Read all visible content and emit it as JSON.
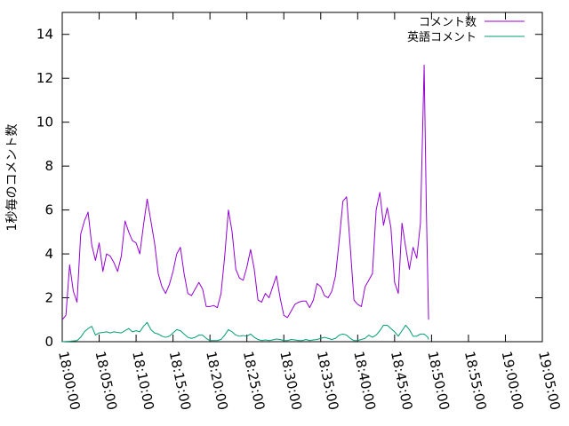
{
  "chart_data": {
    "type": "line",
    "title": "",
    "xlabel": "",
    "ylabel": "1秒毎のコメント数",
    "xlim": [
      "18:00:00",
      "19:05:00"
    ],
    "ylim": [
      0,
      15
    ],
    "xticks": [
      "18:00:00",
      "18:05:00",
      "18:10:00",
      "18:15:00",
      "18:20:00",
      "18:25:00",
      "18:30:00",
      "18:35:00",
      "18:40:00",
      "18:45:00",
      "18:50:00",
      "18:55:00",
      "19:00:00",
      "19:05:00"
    ],
    "yticks": [
      "0",
      "2",
      "4",
      "6",
      "8",
      "10",
      "12",
      "14"
    ],
    "grid": false,
    "legend_position": "top-right",
    "x_unit": "minutes after 18:00:00",
    "series": [
      {
        "name": "コメント数",
        "color": "#9400d3",
        "points": [
          [
            0.0,
            1.0
          ],
          [
            0.5,
            1.2
          ],
          [
            1.0,
            3.5
          ],
          [
            1.5,
            2.3
          ],
          [
            2.0,
            1.8
          ],
          [
            2.5,
            4.9
          ],
          [
            3.0,
            5.5
          ],
          [
            3.5,
            5.9
          ],
          [
            4.0,
            4.4
          ],
          [
            4.5,
            3.7
          ],
          [
            5.0,
            4.5
          ],
          [
            5.5,
            3.2
          ],
          [
            6.0,
            4.0
          ],
          [
            6.5,
            3.9
          ],
          [
            7.0,
            3.6
          ],
          [
            7.5,
            3.2
          ],
          [
            8.0,
            3.9
          ],
          [
            8.5,
            5.5
          ],
          [
            9.0,
            5.0
          ],
          [
            9.5,
            4.6
          ],
          [
            10.0,
            4.5
          ],
          [
            10.5,
            4.0
          ],
          [
            11.0,
            5.3
          ],
          [
            11.5,
            6.5
          ],
          [
            12.0,
            5.5
          ],
          [
            12.5,
            4.5
          ],
          [
            13.0,
            3.1
          ],
          [
            13.5,
            2.5
          ],
          [
            14.0,
            2.2
          ],
          [
            14.5,
            2.6
          ],
          [
            15.0,
            3.2
          ],
          [
            15.5,
            4.0
          ],
          [
            16.0,
            4.3
          ],
          [
            16.5,
            3.1
          ],
          [
            17.0,
            2.2
          ],
          [
            17.5,
            2.1
          ],
          [
            18.0,
            2.4
          ],
          [
            18.5,
            2.7
          ],
          [
            19.0,
            2.4
          ],
          [
            19.5,
            1.6
          ],
          [
            20.0,
            1.6
          ],
          [
            20.5,
            1.65
          ],
          [
            21.0,
            1.55
          ],
          [
            21.5,
            2.2
          ],
          [
            22.0,
            3.9
          ],
          [
            22.5,
            6.0
          ],
          [
            23.0,
            5.0
          ],
          [
            23.5,
            3.3
          ],
          [
            24.0,
            2.9
          ],
          [
            24.5,
            2.8
          ],
          [
            25.0,
            3.4
          ],
          [
            25.5,
            4.2
          ],
          [
            26.0,
            3.3
          ],
          [
            26.5,
            1.9
          ],
          [
            27.0,
            1.8
          ],
          [
            27.5,
            2.2
          ],
          [
            28.0,
            2.0
          ],
          [
            28.5,
            2.5
          ],
          [
            29.0,
            3.0
          ],
          [
            29.5,
            2.0
          ],
          [
            30.0,
            1.2
          ],
          [
            30.5,
            1.1
          ],
          [
            31.0,
            1.4
          ],
          [
            31.5,
            1.7
          ],
          [
            32.0,
            1.8
          ],
          [
            32.5,
            1.85
          ],
          [
            33.0,
            1.85
          ],
          [
            33.5,
            1.55
          ],
          [
            34.0,
            1.9
          ],
          [
            34.5,
            2.65
          ],
          [
            35.0,
            2.5
          ],
          [
            35.5,
            2.1
          ],
          [
            36.0,
            2.0
          ],
          [
            36.5,
            2.3
          ],
          [
            37.0,
            3.0
          ],
          [
            37.5,
            4.6
          ],
          [
            38.0,
            6.4
          ],
          [
            38.5,
            6.6
          ],
          [
            39.0,
            4.3
          ],
          [
            39.5,
            1.9
          ],
          [
            40.0,
            1.7
          ],
          [
            40.5,
            1.6
          ],
          [
            41.0,
            2.5
          ],
          [
            41.5,
            2.8
          ],
          [
            42.0,
            3.1
          ],
          [
            42.5,
            6.0
          ],
          [
            43.0,
            6.8
          ],
          [
            43.5,
            5.3
          ],
          [
            44.0,
            6.1
          ],
          [
            44.5,
            5.2
          ],
          [
            45.0,
            2.7
          ],
          [
            45.5,
            2.2
          ],
          [
            46.0,
            5.4
          ],
          [
            46.5,
            4.3
          ],
          [
            47.0,
            3.3
          ],
          [
            47.5,
            4.3
          ],
          [
            48.0,
            3.8
          ],
          [
            48.5,
            5.4
          ],
          [
            49.0,
            12.6
          ],
          [
            49.3,
            6.0
          ],
          [
            49.6,
            1.0
          ]
        ]
      },
      {
        "name": "英語コメント",
        "color": "#009e73",
        "points": [
          [
            0.0,
            0.0
          ],
          [
            1.0,
            0.02
          ],
          [
            2.0,
            0.05
          ],
          [
            2.5,
            0.2
          ],
          [
            3.0,
            0.45
          ],
          [
            3.5,
            0.6
          ],
          [
            4.0,
            0.7
          ],
          [
            4.5,
            0.3
          ],
          [
            5.0,
            0.4
          ],
          [
            5.5,
            0.42
          ],
          [
            6.0,
            0.45
          ],
          [
            6.5,
            0.4
          ],
          [
            7.0,
            0.45
          ],
          [
            7.5,
            0.42
          ],
          [
            8.0,
            0.4
          ],
          [
            8.5,
            0.5
          ],
          [
            9.0,
            0.6
          ],
          [
            9.5,
            0.45
          ],
          [
            10.0,
            0.5
          ],
          [
            10.5,
            0.45
          ],
          [
            11.0,
            0.7
          ],
          [
            11.5,
            0.88
          ],
          [
            12.0,
            0.55
          ],
          [
            12.5,
            0.4
          ],
          [
            13.0,
            0.35
          ],
          [
            13.5,
            0.25
          ],
          [
            14.0,
            0.2
          ],
          [
            14.5,
            0.25
          ],
          [
            15.0,
            0.4
          ],
          [
            15.5,
            0.55
          ],
          [
            16.0,
            0.5
          ],
          [
            16.5,
            0.35
          ],
          [
            17.0,
            0.2
          ],
          [
            17.5,
            0.15
          ],
          [
            18.0,
            0.2
          ],
          [
            18.5,
            0.3
          ],
          [
            19.0,
            0.3
          ],
          [
            19.5,
            0.15
          ],
          [
            20.0,
            0.05
          ],
          [
            20.5,
            0.05
          ],
          [
            21.0,
            0.05
          ],
          [
            21.5,
            0.1
          ],
          [
            22.0,
            0.3
          ],
          [
            22.5,
            0.55
          ],
          [
            23.0,
            0.45
          ],
          [
            23.5,
            0.3
          ],
          [
            24.0,
            0.25
          ],
          [
            24.5,
            0.28
          ],
          [
            25.0,
            0.25
          ],
          [
            25.5,
            0.35
          ],
          [
            26.0,
            0.2
          ],
          [
            26.5,
            0.1
          ],
          [
            27.0,
            0.05
          ],
          [
            27.5,
            0.08
          ],
          [
            28.0,
            0.05
          ],
          [
            28.5,
            0.08
          ],
          [
            29.0,
            0.12
          ],
          [
            29.5,
            0.1
          ],
          [
            30.0,
            0.05
          ],
          [
            30.5,
            0.05
          ],
          [
            31.0,
            0.1
          ],
          [
            31.5,
            0.08
          ],
          [
            32.0,
            0.05
          ],
          [
            32.5,
            0.05
          ],
          [
            33.0,
            0.1
          ],
          [
            33.5,
            0.05
          ],
          [
            34.0,
            0.08
          ],
          [
            34.5,
            0.1
          ],
          [
            35.0,
            0.15
          ],
          [
            35.5,
            0.2
          ],
          [
            36.0,
            0.15
          ],
          [
            36.5,
            0.1
          ],
          [
            37.0,
            0.15
          ],
          [
            37.5,
            0.3
          ],
          [
            38.0,
            0.35
          ],
          [
            38.5,
            0.3
          ],
          [
            39.0,
            0.15
          ],
          [
            39.5,
            0.05
          ],
          [
            40.0,
            0.05
          ],
          [
            40.5,
            0.1
          ],
          [
            41.0,
            0.15
          ],
          [
            41.5,
            0.3
          ],
          [
            42.0,
            0.2
          ],
          [
            42.5,
            0.3
          ],
          [
            43.0,
            0.5
          ],
          [
            43.5,
            0.75
          ],
          [
            44.0,
            0.75
          ],
          [
            44.5,
            0.6
          ],
          [
            45.0,
            0.45
          ],
          [
            45.5,
            0.25
          ],
          [
            46.0,
            0.5
          ],
          [
            46.5,
            0.75
          ],
          [
            47.0,
            0.55
          ],
          [
            47.5,
            0.25
          ],
          [
            48.0,
            0.25
          ],
          [
            48.5,
            0.35
          ],
          [
            49.0,
            0.35
          ],
          [
            49.5,
            0.2
          ],
          [
            49.6,
            0.1
          ]
        ]
      }
    ]
  }
}
